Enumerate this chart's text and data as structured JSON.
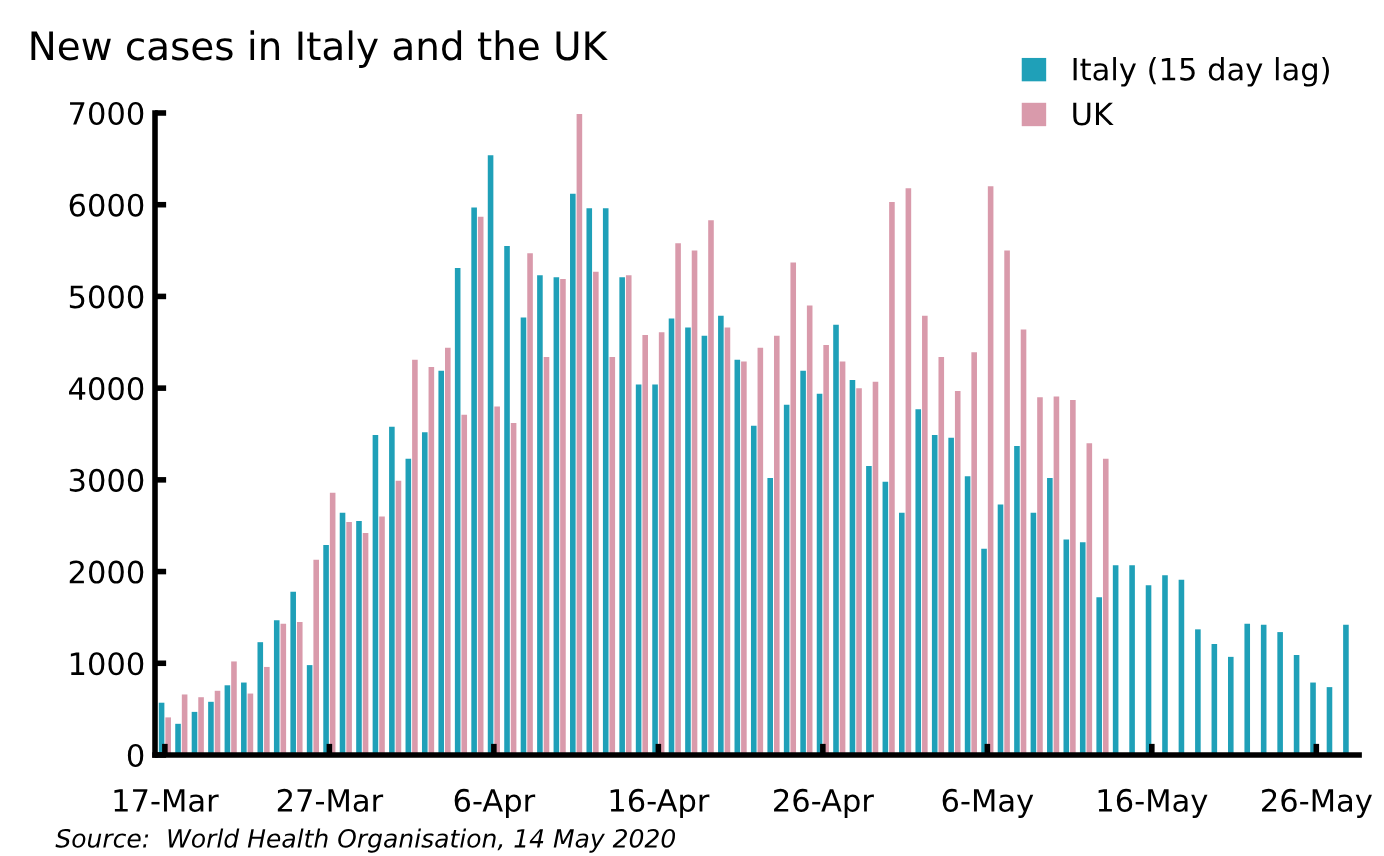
{
  "chart_data": {
    "type": "bar",
    "title": "New cases in Italy and the UK",
    "categories": [
      "17-Mar",
      null,
      null,
      null,
      null,
      null,
      null,
      null,
      null,
      null,
      "27-Mar",
      null,
      null,
      null,
      null,
      null,
      null,
      null,
      null,
      null,
      "6-Apr",
      null,
      null,
      null,
      null,
      null,
      null,
      null,
      null,
      null,
      "16-Apr",
      null,
      null,
      null,
      null,
      null,
      null,
      null,
      null,
      null,
      "26-Apr",
      null,
      null,
      null,
      null,
      null,
      null,
      null,
      null,
      null,
      "6-May",
      null,
      null,
      null,
      null,
      null,
      null,
      null,
      null,
      null,
      "16-May",
      null,
      null,
      null,
      null,
      null,
      null,
      null,
      null,
      null,
      "26-May",
      null,
      null
    ],
    "series": [
      {
        "name": "Italy (15 day lag)",
        "color": "#1fa0b8",
        "values": [
          570,
          340,
          470,
          580,
          760,
          790,
          1230,
          1470,
          1780,
          980,
          2290,
          2640,
          2550,
          3490,
          3580,
          3230,
          3520,
          4190,
          5310,
          5970,
          6540,
          5550,
          4770,
          5230,
          5210,
          6120,
          5960,
          5960,
          5210,
          4040,
          4040,
          4760,
          4660,
          4570,
          4790,
          4310,
          3590,
          3020,
          3820,
          4190,
          3940,
          4690,
          4090,
          3150,
          2980,
          2640,
          3770,
          3490,
          3460,
          3040,
          2250,
          2730,
          3370,
          2640,
          3020,
          2350,
          2320,
          1720,
          2070,
          2070,
          1850,
          1960,
          1910,
          1370,
          1210,
          1070,
          1430,
          1420,
          1340,
          1090,
          790,
          740,
          1420
        ]
      },
      {
        "name": "UK",
        "color": "#d99aab",
        "values": [
          410,
          660,
          630,
          700,
          1020,
          670,
          960,
          1430,
          1450,
          2130,
          2860,
          2540,
          2420,
          2600,
          2990,
          4310,
          4230,
          4440,
          3710,
          5870,
          3800,
          3620,
          5470,
          4340,
          5190,
          6990,
          5270,
          4340,
          5230,
          4580,
          4610,
          5580,
          5500,
          5830,
          4660,
          4290,
          4440,
          4570,
          5370,
          4900,
          4470,
          4290,
          4000,
          4070,
          6030,
          6180,
          4790,
          4340,
          3970,
          4390,
          6200,
          5500,
          4640,
          3900,
          3910,
          3870,
          3400,
          3230,
          null,
          null,
          null,
          null,
          null,
          null,
          null,
          null,
          null,
          null,
          null,
          null,
          null,
          null,
          null
        ]
      }
    ],
    "ylim": [
      0,
      7000
    ],
    "yticks": [
      0,
      1000,
      2000,
      3000,
      4000,
      5000,
      6000,
      7000
    ],
    "grid": false,
    "legend": "top right",
    "annotations": [
      "Source:  World Health Organisation, 14 May 2020"
    ]
  }
}
